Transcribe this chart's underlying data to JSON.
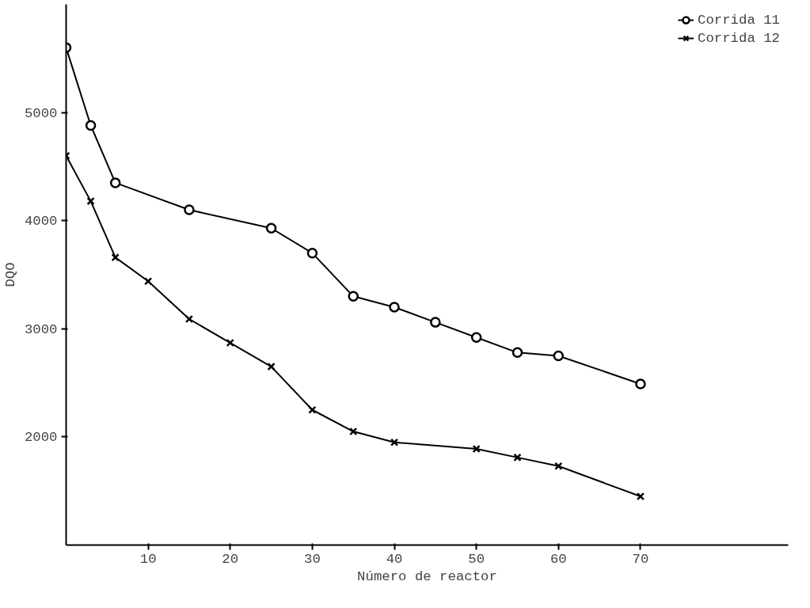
{
  "chart_data": {
    "type": "line",
    "xlabel": "Número de reactor",
    "ylabel": "DQO",
    "xlim": [
      0,
      88
    ],
    "ylim": [
      1000,
      6000
    ],
    "xticks": [
      10,
      20,
      30,
      40,
      50,
      60,
      70
    ],
    "yticks": [
      2000,
      3000,
      4000,
      5000
    ],
    "grid": false,
    "legend": "top right",
    "series": [
      {
        "name": "Corrida 11",
        "color": "#000000",
        "marker": "circle",
        "x": [
          0,
          3,
          6,
          15,
          25,
          30,
          35,
          40,
          45,
          50,
          55,
          60,
          70
        ],
        "values": [
          5600,
          4880,
          4350,
          4100,
          3930,
          3700,
          3300,
          3200,
          3060,
          2920,
          2780,
          2750,
          2490
        ]
      },
      {
        "name": "Corrida 12",
        "color": "#000000",
        "marker": "cross",
        "x": [
          0,
          3,
          6,
          10,
          15,
          20,
          25,
          30,
          35,
          40,
          50,
          55,
          60,
          70
        ],
        "values": [
          4600,
          4180,
          3660,
          3440,
          3090,
          2870,
          2650,
          2250,
          2050,
          1950,
          1890,
          1810,
          1730,
          1450
        ]
      }
    ]
  }
}
